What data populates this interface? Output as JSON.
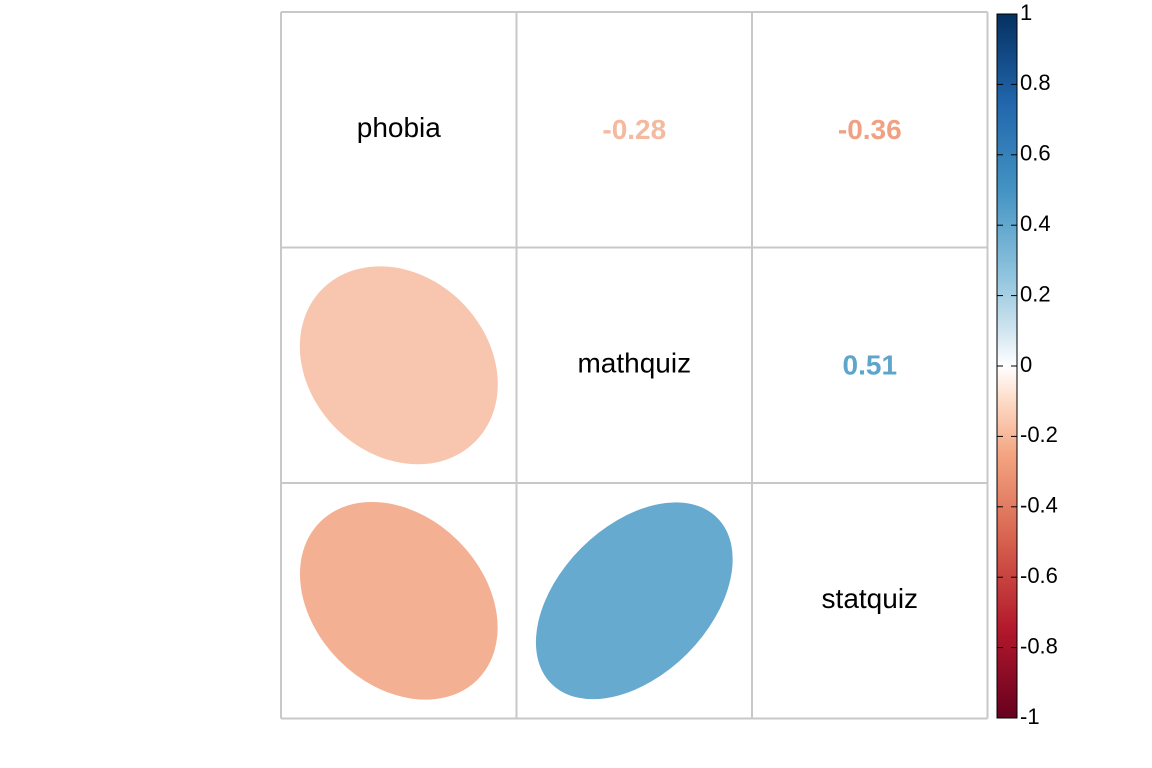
{
  "chart_data": {
    "type": "heatmap",
    "title": "",
    "variables": [
      "phobia",
      "mathquiz",
      "statquiz"
    ],
    "matrix": [
      [
        1,
        -0.28,
        -0.36
      ],
      [
        -0.28,
        1,
        0.51
      ],
      [
        -0.36,
        0.51,
        1
      ]
    ],
    "lower_triangle_method": "ellipse",
    "upper_triangle_method": "number",
    "diagonal": "variable names",
    "coefficient_labels": [
      {
        "row": 0,
        "col": 1,
        "label": "-0.28",
        "color": "#F4B99E"
      },
      {
        "row": 0,
        "col": 2,
        "label": "-0.36",
        "color": "#F0A182"
      },
      {
        "row": 1,
        "col": 2,
        "label": "0.51",
        "color": "#5EA5CC"
      }
    ],
    "ellipses": [
      {
        "row": 1,
        "col": 0,
        "value": -0.28,
        "color": "#F8C5AE"
      },
      {
        "row": 2,
        "col": 0,
        "value": -0.36,
        "color": "#F4B092"
      },
      {
        "row": 2,
        "col": 1,
        "value": 0.51,
        "color": "#67AACF"
      }
    ],
    "colorbar": {
      "range": [
        -1,
        1
      ],
      "tick_labels": [
        "1",
        "0.8",
        "0.6",
        "0.4",
        "0.2",
        "0",
        "-0.2",
        "-0.4",
        "-0.6",
        "-0.8",
        "-1"
      ],
      "tick_values": [
        1,
        0.8,
        0.6,
        0.4,
        0.2,
        0,
        -0.2,
        -0.4,
        -0.6,
        -0.8,
        -1
      ],
      "placement": "right",
      "color_stops": [
        {
          "value": -1,
          "color": "#67001F"
        },
        {
          "value": -0.75,
          "color": "#B2182B"
        },
        {
          "value": -0.5,
          "color": "#D6604D"
        },
        {
          "value": -0.25,
          "color": "#F4A582"
        },
        {
          "value": -0.1,
          "color": "#FDDBC7"
        },
        {
          "value": 0,
          "color": "#FFFFFF"
        },
        {
          "value": 0.1,
          "color": "#D1E5F0"
        },
        {
          "value": 0.25,
          "color": "#92C5DE"
        },
        {
          "value": 0.5,
          "color": "#4393C3"
        },
        {
          "value": 0.75,
          "color": "#2166AC"
        },
        {
          "value": 1,
          "color": "#053061"
        }
      ]
    },
    "grid": true
  }
}
